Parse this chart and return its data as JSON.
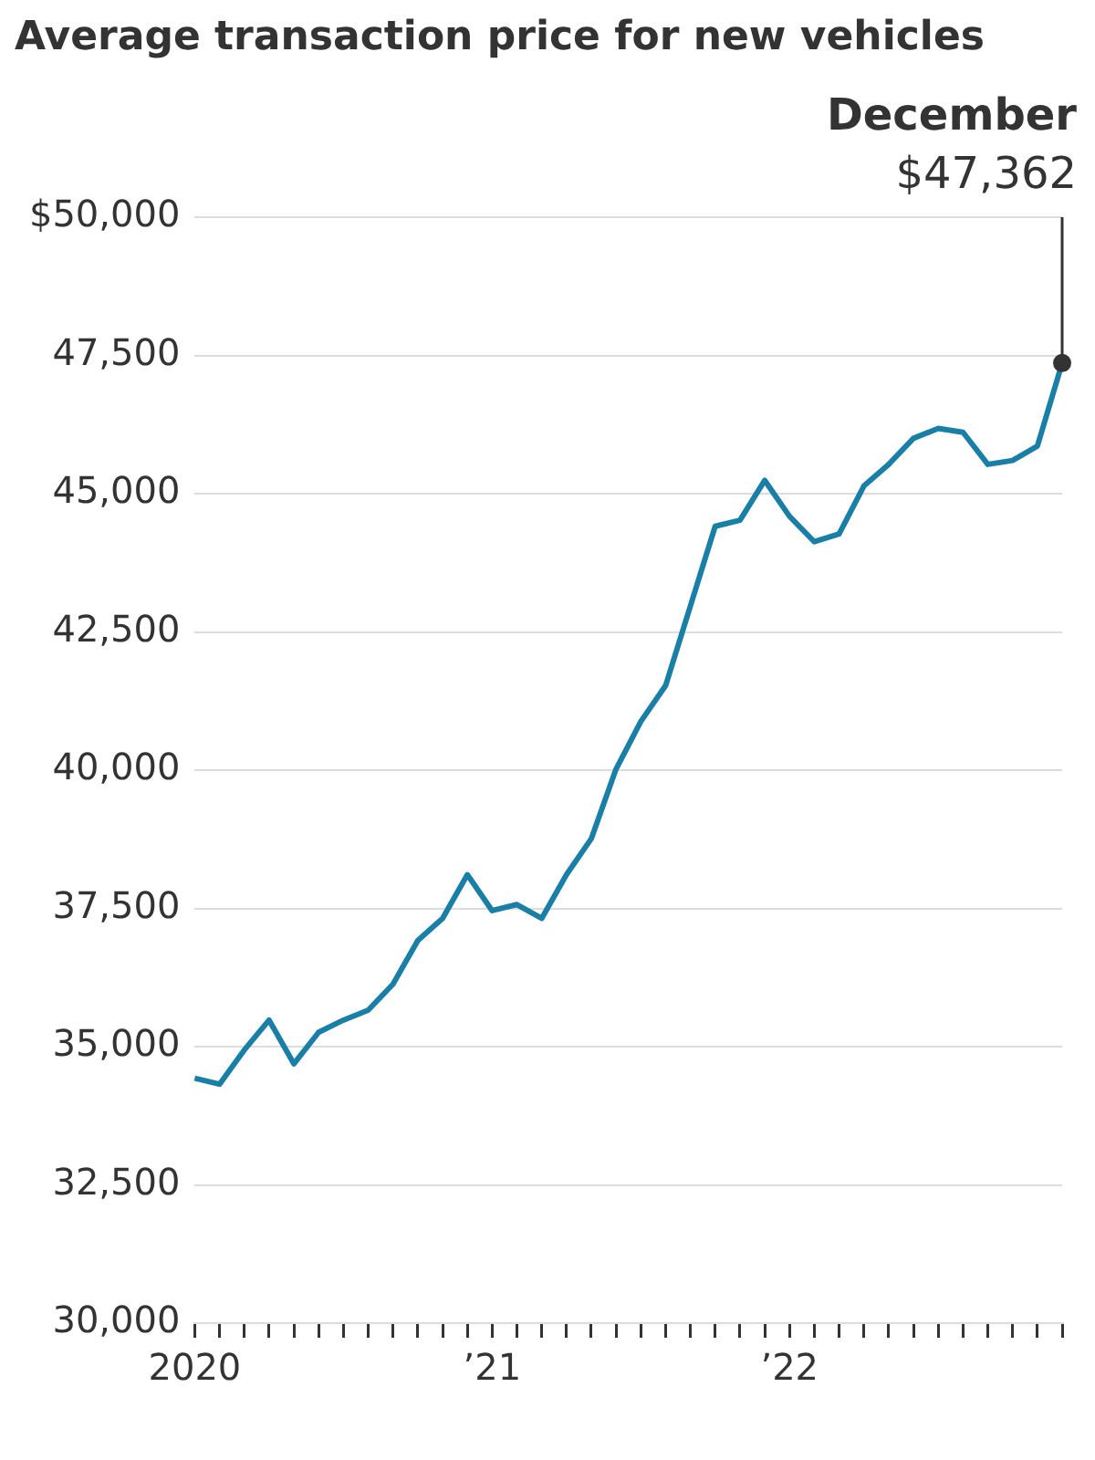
{
  "chart_data": {
    "type": "line",
    "title": "Average transaction price for new vehicles",
    "categories": [
      "2020",
      null,
      null,
      null,
      null,
      null,
      null,
      null,
      null,
      null,
      null,
      null,
      "’21",
      null,
      null,
      null,
      null,
      null,
      null,
      null,
      null,
      null,
      null,
      null,
      "’22",
      null,
      null,
      null,
      null,
      null,
      null,
      null,
      null,
      null,
      null,
      null
    ],
    "series": [
      {
        "color": "#1a7fa6",
        "values": [
          34430,
          34320,
          34940,
          35480,
          34690,
          35260,
          35480,
          35660,
          36130,
          36920,
          37320,
          38110,
          37460,
          37570,
          37320,
          38110,
          38760,
          40020,
          40880,
          41530,
          42970,
          44410,
          44520,
          45240,
          44590,
          44130,
          44270,
          45140,
          45530,
          46000,
          46180,
          46110,
          45530,
          45600,
          45860,
          47362
        ],
        "value_labels": [
          null,
          null,
          null,
          null,
          null,
          null,
          null,
          null,
          null,
          null,
          null,
          null,
          null,
          null,
          null,
          null,
          null,
          null,
          null,
          null,
          null,
          null,
          null,
          null,
          null,
          null,
          null,
          null,
          null,
          null,
          null,
          null,
          null,
          null,
          null,
          "$47,362"
        ]
      }
    ],
    "annotations": [
      "December"
    ],
    "ylim": [
      30000,
      50000
    ],
    "yticks": [
      {
        "value": 30000,
        "label": "30,000"
      },
      {
        "value": 32500,
        "label": "32,500"
      },
      {
        "value": 35000,
        "label": "35,000"
      },
      {
        "value": 37500,
        "label": "37,500"
      },
      {
        "value": 40000,
        "label": "40,000"
      },
      {
        "value": 42500,
        "label": "42,500"
      },
      {
        "value": 45000,
        "label": "45,000"
      },
      {
        "value": 47500,
        "label": "47,500"
      },
      {
        "value": 50000,
        "label": "$50,000"
      }
    ],
    "grid": "y",
    "legend": false,
    "marker": "none",
    "line_style": "solid"
  }
}
